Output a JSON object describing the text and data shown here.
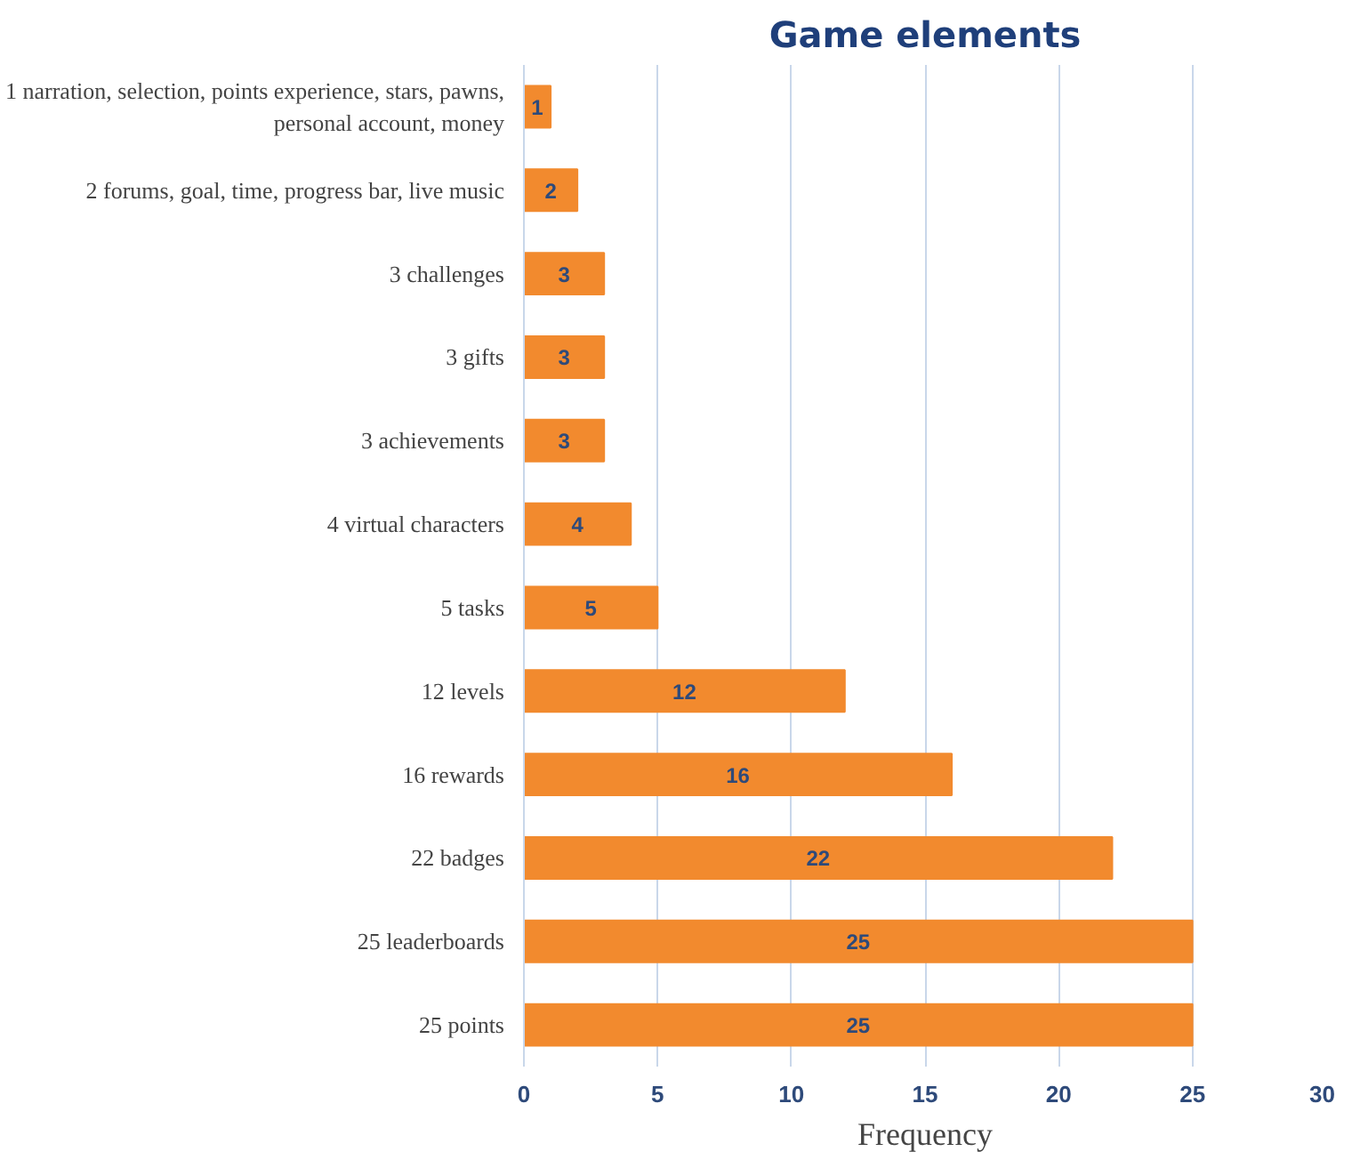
{
  "chart_data": {
    "type": "bar",
    "orientation": "horizontal",
    "title": "Game elements",
    "xlabel": "Frequency",
    "categories": [
      "1 narration, selection, points experience, stars, pawns, personal account, money",
      "2 forums, goal, time, progress bar, live music",
      "3 challenges",
      "3 gifts",
      "3 achievements",
      "4 virtual characters",
      "5 tasks",
      "12 levels",
      "16 rewards",
      "22 badges",
      "25 leaderboards",
      "25 points"
    ],
    "values": [
      1,
      2,
      3,
      3,
      3,
      4,
      5,
      12,
      16,
      22,
      25,
      25
    ],
    "color": "#f28a2e",
    "data_labels": true,
    "grid": "x",
    "xlim": [
      0,
      30
    ],
    "xticks": [
      0,
      5,
      10,
      15,
      20,
      25,
      30
    ]
  }
}
